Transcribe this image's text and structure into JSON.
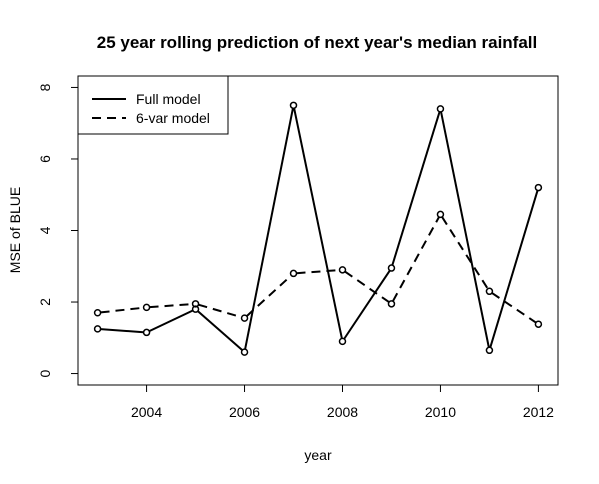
{
  "chart_data": {
    "type": "line",
    "title": "25 year rolling prediction of next year's median rainfall",
    "xlabel": "year",
    "ylabel": "MSE of BLUE",
    "x": [
      2003,
      2004,
      2005,
      2006,
      2007,
      2008,
      2009,
      2010,
      2011,
      2012
    ],
    "xlim": [
      2002.6,
      2012.4
    ],
    "ylim": [
      -0.32,
      8.32
    ],
    "xticks": [
      2004,
      2006,
      2008,
      2010,
      2012
    ],
    "yticks": [
      0,
      2,
      4,
      6,
      8
    ],
    "grid": false,
    "legend_position": "top-left",
    "series": [
      {
        "name": "Full model",
        "line_style": "solid",
        "color": "#000000",
        "values": [
          1.25,
          1.15,
          1.8,
          0.6,
          7.5,
          0.9,
          2.95,
          7.4,
          0.65,
          5.2
        ]
      },
      {
        "name": "6-var model",
        "line_style": "dashed",
        "color": "#000000",
        "values": [
          1.7,
          1.85,
          1.95,
          1.55,
          2.8,
          2.9,
          1.95,
          4.45,
          2.3,
          1.38
        ]
      }
    ]
  }
}
